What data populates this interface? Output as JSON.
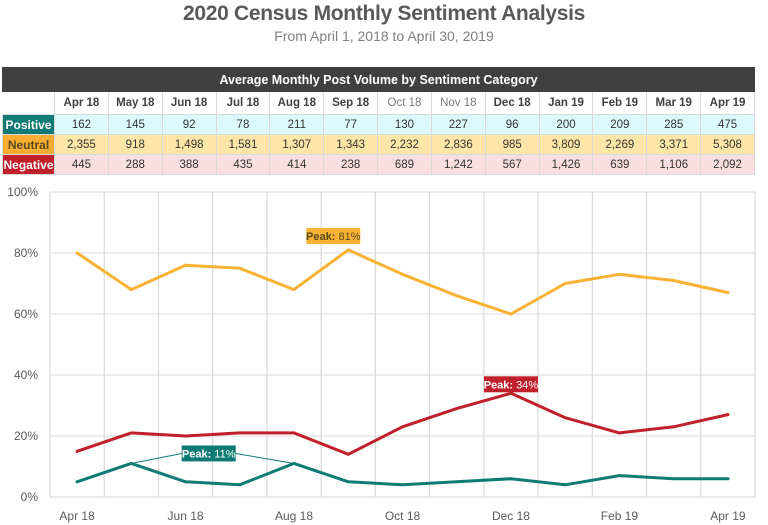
{
  "title": "2020 Census Monthly Sentiment Analysis",
  "subtitle": "From April 1, 2018 to April 30, 2019",
  "table": {
    "banner": "Average Monthly Post Volume by Sentiment Category",
    "months": [
      "Apr 18",
      "May 18",
      "Jun 18",
      "Jul 18",
      "Aug 18",
      "Sep 18",
      "Oct 18",
      "Nov 18",
      "Dec 18",
      "Jan 19",
      "Feb 19",
      "Mar 19",
      "Apr 19"
    ],
    "dim_months": [
      "Oct 18",
      "Nov 18"
    ],
    "rows": [
      {
        "label": "Positive",
        "values": [
          "162",
          "145",
          "92",
          "78",
          "211",
          "77",
          "130",
          "227",
          "96",
          "200",
          "209",
          "285",
          "475"
        ]
      },
      {
        "label": "Neutral",
        "values": [
          "2,355",
          "918",
          "1,498",
          "1,581",
          "1,307",
          "1,343",
          "2,232",
          "2,836",
          "985",
          "3,809",
          "2,269",
          "3,371",
          "5,308"
        ]
      },
      {
        "label": "Negative",
        "values": [
          "445",
          "288",
          "388",
          "435",
          "414",
          "238",
          "689",
          "1,242",
          "567",
          "1,426",
          "639",
          "1,106",
          "2,092"
        ]
      }
    ]
  },
  "colors": {
    "positive": "#0f7b74",
    "neutral": "#f9b233",
    "negative": "#c0202b",
    "grid": "#d9d9d9"
  },
  "chart_data": {
    "type": "line",
    "title": "",
    "xlabel": "",
    "ylabel": "",
    "x": [
      "Apr 18",
      "May 18",
      "Jun 18",
      "Jul 18",
      "Aug 18",
      "Sep 18",
      "Oct 18",
      "Nov 18",
      "Dec 18",
      "Jan 19",
      "Feb 19",
      "Mar 19",
      "Apr 19"
    ],
    "x_tick_labels": [
      "Apr 18",
      "",
      "Jun 18",
      "",
      "Aug 18",
      "",
      "Oct 18",
      "",
      "Dec 18",
      "",
      "Feb 19",
      "",
      "Apr 19"
    ],
    "ylim": [
      0,
      100
    ],
    "y_ticks": [
      "0%",
      "20%",
      "40%",
      "60%",
      "80%",
      "100%"
    ],
    "y_unit": "%",
    "grid": true,
    "legend": "none",
    "series": [
      {
        "name": "Neutral",
        "color": "#f9b233",
        "values": [
          80,
          68,
          76,
          75,
          68,
          81,
          73,
          66,
          60,
          70,
          73,
          71,
          67
        ]
      },
      {
        "name": "Negative",
        "color": "#c0202b",
        "values": [
          15,
          21,
          20,
          21,
          21,
          14,
          23,
          29,
          34,
          26,
          21,
          23,
          27
        ]
      },
      {
        "name": "Positive",
        "color": "#0f7b74",
        "values": [
          5,
          11,
          5,
          4,
          11,
          5,
          4,
          5,
          6,
          4,
          7,
          6,
          6
        ]
      }
    ],
    "annotations": [
      {
        "series": "Neutral",
        "label_bold": "Peak:",
        "label_value": "81%",
        "points": [
          "Sep 18"
        ],
        "text_color": "#5a4a1a",
        "bg": "#f9b233"
      },
      {
        "series": "Negative",
        "label_bold": "Peak:",
        "label_value": "34%",
        "points": [
          "Dec 18"
        ],
        "text_color": "#ffffff",
        "bg": "#c0202b"
      },
      {
        "series": "Positive",
        "label_bold": "Peak:",
        "label_value": "11%",
        "points": [
          "May 18",
          "Aug 18"
        ],
        "text_color": "#ffffff",
        "bg": "#0f7b74"
      }
    ]
  }
}
